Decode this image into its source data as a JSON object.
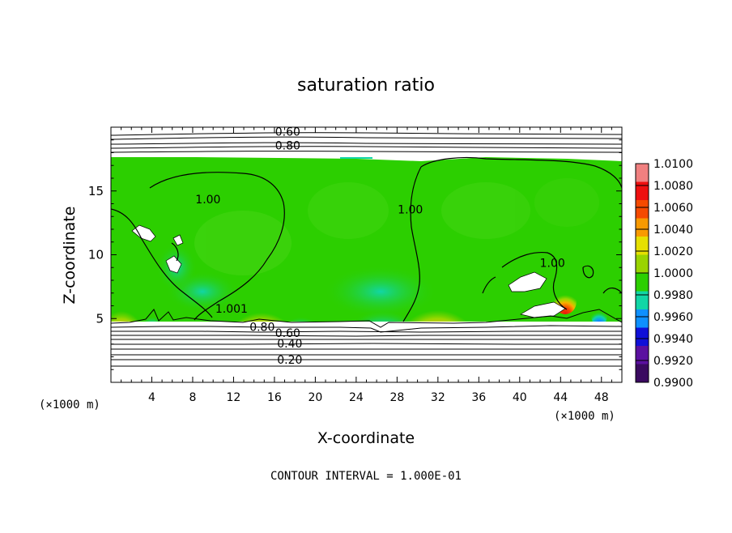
{
  "chart_data": {
    "type": "heatmap",
    "title": "saturation ratio",
    "xlabel": "X-coordinate",
    "ylabel": "Z-coordinate",
    "x_unit_label": "(×1000 m)",
    "z_unit_label": "(×1000 m)",
    "xlim": [
      0,
      50
    ],
    "ylim": [
      0,
      20
    ],
    "x_ticks": [
      4,
      8,
      12,
      16,
      20,
      24,
      28,
      32,
      36,
      40,
      44,
      48
    ],
    "y_ticks": [
      5,
      10,
      15
    ],
    "footer": "CONTOUR INTERVAL = 1.000E-01",
    "colorbar": {
      "levels": [
        "1.0100",
        "1.0080",
        "1.0060",
        "1.0040",
        "1.0020",
        "1.0000",
        "0.9980",
        "0.9960",
        "0.9940",
        "0.9920",
        "0.9900"
      ],
      "colors": [
        "#f08080",
        "#ee1010",
        "#f54a00",
        "#f89a00",
        "#e6e000",
        "#9ad400",
        "#2ccf00",
        "#11d6a6",
        "#0e90ff",
        "#1010d8",
        "#5b10a0",
        "#3a0a60"
      ]
    },
    "contour_labels": [
      {
        "text": "0.60",
        "x": 17.3,
        "z": 19.6
      },
      {
        "text": "0.80",
        "x": 17.3,
        "z": 18.5
      },
      {
        "text": "1.00",
        "x": 9.5,
        "z": 14.3
      },
      {
        "text": "1.00",
        "x": 29.3,
        "z": 13.5
      },
      {
        "text": "1.00",
        "x": 43.2,
        "z": 9.3
      },
      {
        "text": "1.001",
        "x": 11.8,
        "z": 5.7
      },
      {
        "text": "0.80",
        "x": 14.8,
        "z": 4.3
      },
      {
        "text": "0.60",
        "x": 17.3,
        "z": 3.8
      },
      {
        "text": "0.40",
        "x": 17.5,
        "z": 3.0
      },
      {
        "text": "0.20",
        "x": 17.5,
        "z": 1.7
      }
    ],
    "regions": [
      {
        "value": 1.0,
        "description": "background",
        "x": [
          0,
          50
        ],
        "z": [
          4.8,
          17.5
        ]
      },
      {
        "value": 1.006,
        "x_center": 0.8,
        "z_center": 5.6
      },
      {
        "value": 1.006,
        "x_center": 14.8,
        "z_center": 5.4
      },
      {
        "value": 1.006,
        "x_center": 31.0,
        "z_center": 5.5
      },
      {
        "value": 1.006,
        "x_center": 44.3,
        "z_center": 6.5
      },
      {
        "value": 0.994,
        "x_center": 26.8,
        "z_center": 5.6
      },
      {
        "value": 0.994,
        "x_center": 18.8,
        "z_center": 5.3
      },
      {
        "value": 0.994,
        "x_center": 4.2,
        "z_center": 5.2
      },
      {
        "value": 0.996,
        "x_center": 6.7,
        "z_center": 6.8
      }
    ]
  }
}
